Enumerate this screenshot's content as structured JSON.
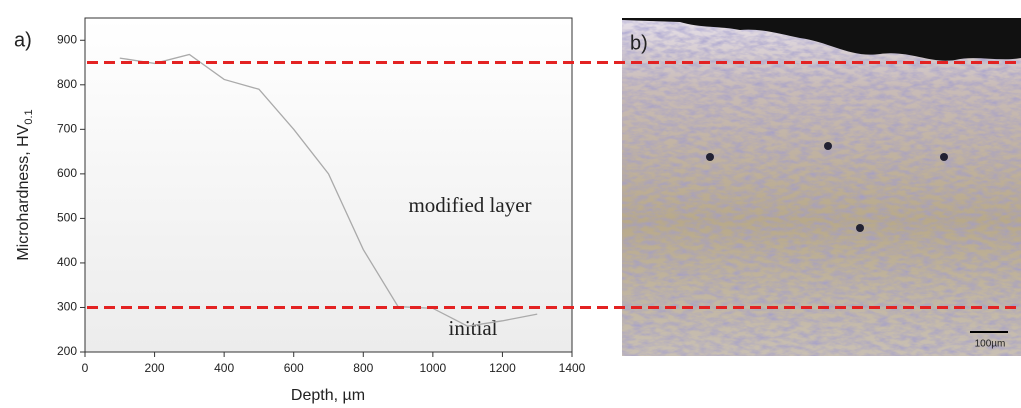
{
  "chart_data": {
    "type": "line",
    "xlabel": "Depth, µm",
    "ylabel": "Microhardness, HV",
    "ylabel_sub": "0.1",
    "panel_labels": [
      "a)",
      "b)"
    ],
    "annotations": [
      "modified layer",
      "initial"
    ],
    "scale_bar_label": "100µm",
    "x": [
      100,
      200,
      300,
      400,
      500,
      600,
      700,
      800,
      900,
      1000,
      1100,
      1200,
      1300
    ],
    "values": [
      860,
      848,
      868,
      812,
      790,
      700,
      600,
      430,
      302,
      298,
      258,
      270,
      285
    ],
    "color": "#aaaaaa",
    "xlim": [
      0,
      1400
    ],
    "xticks": [
      0,
      200,
      400,
      600,
      800,
      1000,
      1200,
      1400
    ],
    "ylim": [
      200,
      950
    ],
    "yticks": [
      200,
      300,
      400,
      500,
      600,
      700,
      800,
      900
    ],
    "hlines": [
      850,
      300
    ],
    "hline_color": "#e32222"
  }
}
